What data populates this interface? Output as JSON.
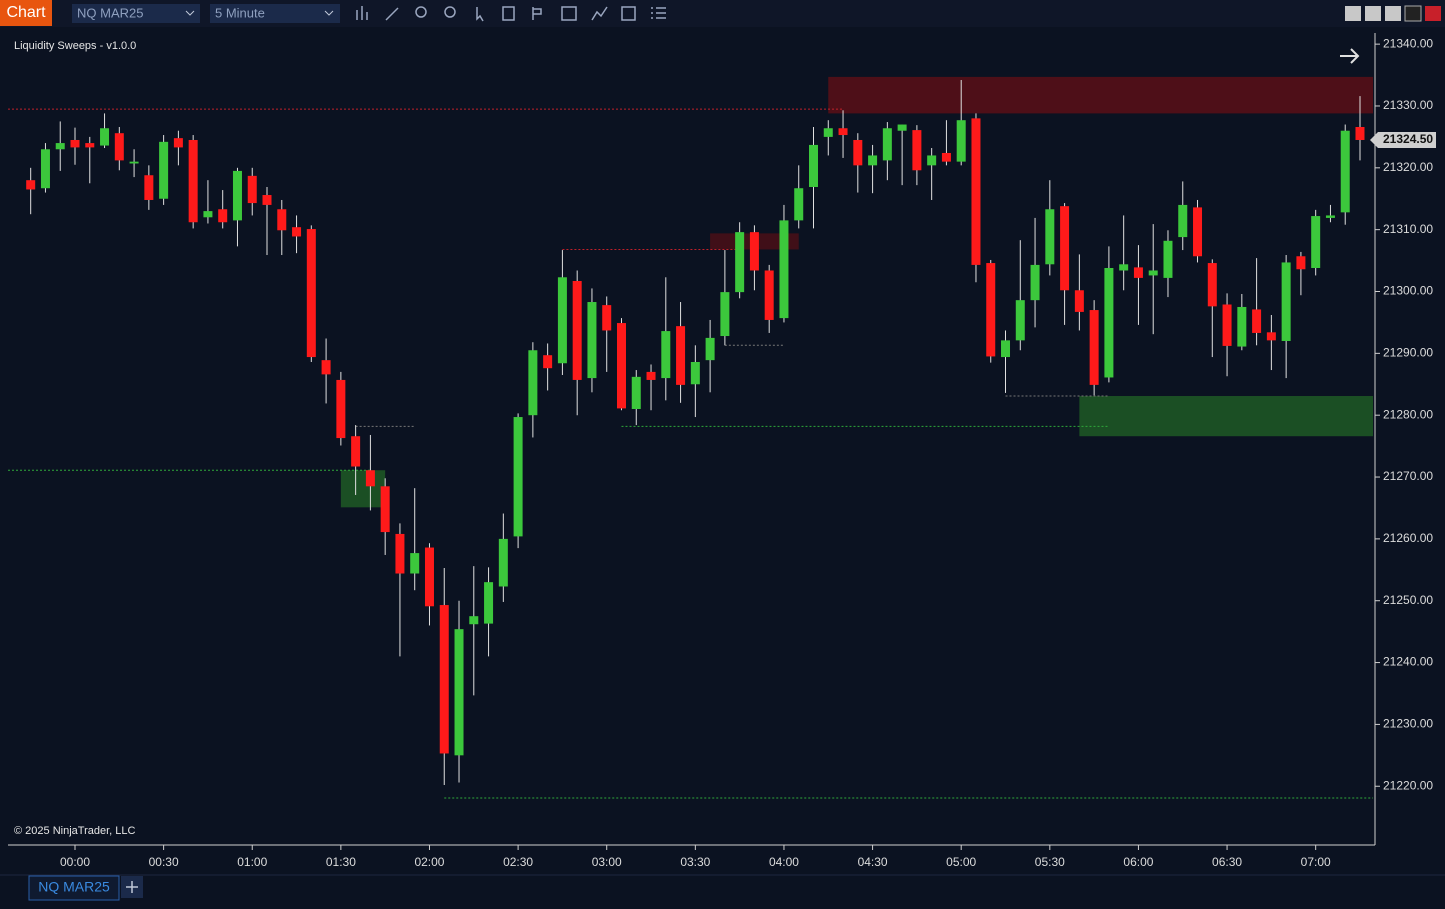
{
  "ui": {
    "app_label": "Chart",
    "instrument": "NQ MAR25",
    "interval": "5 Minute",
    "tab_label": "NQ MAR25"
  },
  "chart_data": {
    "type": "candlestick",
    "title": "Liquidity Sweeps - v1.0.0",
    "footer": "© 2025 NinjaTrader, LLC",
    "categories": [
      null,
      null,
      null,
      "00:00",
      null,
      null,
      null,
      null,
      null,
      "00:30",
      null,
      null,
      null,
      null,
      null,
      "01:00",
      null,
      null,
      null,
      null,
      null,
      "01:30",
      null,
      null,
      null,
      null,
      null,
      "02:00",
      null,
      null,
      null,
      null,
      null,
      "02:30",
      null,
      null,
      null,
      null,
      null,
      "03:00",
      null,
      null,
      null,
      null,
      null,
      "03:30",
      null,
      null,
      null,
      null,
      null,
      "04:00",
      null,
      null,
      null,
      null,
      null,
      "04:30",
      null,
      null,
      null,
      null,
      null,
      "05:00",
      null,
      null,
      null,
      null,
      null,
      "05:30",
      null,
      null,
      null,
      null,
      null,
      "06:00",
      null,
      null,
      null,
      null,
      null,
      "06:30",
      null,
      null,
      null,
      null,
      null,
      "07:00",
      null,
      null,
      null
    ],
    "open": [
      21318,
      21316.7,
      21323,
      21324.5,
      21324,
      21323.6,
      21325.6,
      21320.7,
      21318.8,
      21315,
      21324.8,
      21324.5,
      21312,
      21313.3,
      21311.5,
      21318.7,
      21315.6,
      21313.3,
      21310.4,
      21310.1,
      21288.9,
      21285.7,
      21276.6,
      21271.1,
      21268.5,
      21260.8,
      21254.4,
      21258.6,
      21249.3,
      21225,
      21246.2,
      21246.3,
      21252.3,
      21260.4,
      21280,
      21289.7,
      21288.4,
      21301.7,
      21286,
      21297.8,
      21294.9,
      21281,
      21287,
      21286,
      21294.4,
      21285,
      21288.9,
      21292.8,
      21299.9,
      21309.6,
      21303.4,
      21295.7,
      21311.5,
      21316.9,
      21325,
      21326.4,
      21324.5,
      21320.4,
      21321.2,
      21326,
      21326.1,
      21320.4,
      21322.4,
      21321,
      21328,
      21304.6,
      21289.4,
      21292.1,
      21298.6,
      21304.4,
      21313.8,
      21300.2,
      21297,
      21286.1,
      21303.4,
      21303.9,
      21302.6,
      21302.2,
      21308.8,
      21313.6,
      21304.6,
      21297.9,
      21291.1,
      21297.1,
      21293.4,
      21292,
      21305.7,
      21303.8,
      21311.9,
      21312.8,
      21326.6
    ],
    "high": [
      21320,
      21324,
      21327.5,
      21326.5,
      21325,
      21328.8,
      21326.6,
      21323,
      21320.4,
      21325.3,
      21326,
      21325.3,
      21318,
      21316.4,
      21320,
      21320,
      21316.9,
      21314.8,
      21312.3,
      21310.7,
      21292.4,
      21287,
      21278.4,
      21276.8,
      21269.8,
      21262.5,
      21268.2,
      21259.3,
      21255.3,
      21250,
      21255.6,
      21255.4,
      21264.1,
      21280.3,
      21291.8,
      21291.6,
      21306.7,
      21303.4,
      21300.5,
      21299.2,
      21295.7,
      21287.3,
      21288.2,
      21302.3,
      21298.3,
      21291.3,
      21295.4,
      21306.7,
      21311.2,
      21310.7,
      21304.3,
      21314,
      21320.4,
      21326.6,
      21327.7,
      21329.3,
      21325.6,
      21323.7,
      21327.4,
      21327,
      21326.9,
      21323.2,
      21327.7,
      21334.2,
      21328.8,
      21305.1,
      21293.7,
      21308.3,
      21311.9,
      21318,
      21314.3,
      21306,
      21298.6,
      21307.3,
      21312.3,
      21307.5,
      21310.9,
      21309.9,
      21317.8,
      21314.8,
      21305.2,
      21299.7,
      21299.6,
      21305.4,
      21296.2,
      21305.9,
      21306.4,
      21313.2,
      21314,
      21327,
      21331.6
    ],
    "low": [
      21312.5,
      21316,
      21319.5,
      21320.5,
      21317.5,
      21323.2,
      21319.6,
      21318.5,
      21313.2,
      21314,
      21320.4,
      21310.2,
      21311,
      21310.2,
      21307.3,
      21312.3,
      21305.9,
      21305.9,
      21306.2,
      21288.6,
      21281.9,
      21275.1,
      21267.1,
      21264.6,
      21257.4,
      21241,
      21251.7,
      21246,
      21220.2,
      21220.6,
      21234.7,
      21241,
      21249.8,
      21258.5,
      21276.4,
      21284,
      21286.5,
      21280,
      21283.7,
      21287,
      21280.8,
      21278.4,
      21280.8,
      21282.4,
      21282,
      21279.7,
      21283.7,
      21291.3,
      21298.9,
      21300.2,
      21293.3,
      21295,
      21310.2,
      21310.2,
      21322,
      21321.6,
      21316,
      21315.9,
      21318,
      21317.2,
      21317.2,
      21314.8,
      21320.4,
      21320.4,
      21301.5,
      21288.5,
      21283.6,
      21290.5,
      21294.2,
      21302.6,
      21294.6,
      21293.7,
      21283.2,
      21285.3,
      21300.2,
      21294.6,
      21293.1,
      21299.1,
      21306.7,
      21304.7,
      21289.4,
      21286.3,
      21290.5,
      21291.3,
      21287.3,
      21286,
      21299.4,
      21302.6,
      21311.2,
      21310.8,
      21321.2
    ],
    "close": [
      21316.5,
      21323,
      21324,
      21323.3,
      21323.3,
      21326.4,
      21321.2,
      21321,
      21314.8,
      21324.2,
      21323.3,
      21311.2,
      21313,
      21311.2,
      21319.5,
      21314.3,
      21314,
      21309.9,
      21308.9,
      21289.4,
      21286.6,
      21276.3,
      21271.7,
      21268.5,
      21261.1,
      21254.4,
      21257.7,
      21249.1,
      21225.3,
      21245.4,
      21247.5,
      21253,
      21260,
      21279.7,
      21290.5,
      21287.6,
      21302.3,
      21285.7,
      21298.3,
      21293.7,
      21281.1,
      21286.2,
      21285.7,
      21293.6,
      21284.9,
      21288.6,
      21292.5,
      21299.9,
      21309.6,
      21303.4,
      21295.4,
      21311.5,
      21316.7,
      21323.7,
      21326.4,
      21325.3,
      21320.4,
      21322,
      21326.4,
      21327,
      21319.6,
      21322,
      21321,
      21327.7,
      21304.3,
      21289.5,
      21292.1,
      21298.6,
      21304.3,
      21313.3,
      21300.2,
      21296.7,
      21284.9,
      21303.8,
      21304.4,
      21302.2,
      21303.4,
      21308.2,
      21314,
      21305.7,
      21297.6,
      21291.2,
      21297.5,
      21293.3,
      21292.1,
      21304.7,
      21303.6,
      21312.2,
      21312.3,
      21326,
      21324.5
    ],
    "up_color": "#3cc83c",
    "down_color": "#ff1a1a",
    "ylim": [
      21210.5,
      21341.8
    ],
    "yticks": [
      {
        "value": 21220,
        "label": "21220.00"
      },
      {
        "value": 21230,
        "label": "21230.00"
      },
      {
        "value": 21240,
        "label": "21240.00"
      },
      {
        "value": 21250,
        "label": "21250.00"
      },
      {
        "value": 21260,
        "label": "21260.00"
      },
      {
        "value": 21270,
        "label": "21270.00"
      },
      {
        "value": 21280,
        "label": "21280.00"
      },
      {
        "value": 21290,
        "label": "21290.00"
      },
      {
        "value": 21300,
        "label": "21300.00"
      },
      {
        "value": 21310,
        "label": "21310.00"
      },
      {
        "value": 21320,
        "label": "21320.00"
      },
      {
        "value": 21330,
        "label": "21330.00"
      },
      {
        "value": 21340,
        "label": "21340.00"
      }
    ],
    "last_price": {
      "value": 21324.5,
      "label": "21324.50"
    },
    "zones": [
      {
        "top": 21334.7,
        "bottom": 21328.8,
        "from": 54,
        "to": 90,
        "color": "#5a0f16"
      },
      {
        "top": 21309.4,
        "bottom": 21306.8,
        "from": 46,
        "to": 51,
        "color": "#4a0f16"
      },
      {
        "top": 21283.1,
        "bottom": 21276.6,
        "from": 71,
        "to": 90,
        "color": "#1f5a25"
      },
      {
        "top": 21271.1,
        "bottom": 21265.1,
        "from": 21,
        "to": 23,
        "color": "#1f5a25"
      }
    ],
    "levels": [
      {
        "price": 21329.5,
        "from": 0,
        "to": 54,
        "color": "#c0202a"
      },
      {
        "price": 21306.8,
        "from": 36,
        "to": 47,
        "color": "#c0202a"
      },
      {
        "price": 21271.1,
        "from": 0,
        "to": 22,
        "color": "#2fa83a"
      },
      {
        "price": 21278.2,
        "from": 40,
        "to": 72,
        "color": "#2fa83a"
      },
      {
        "price": 21218.1,
        "from": 28,
        "to": 90,
        "color": "#2fa83a"
      },
      {
        "price": 21278.2,
        "from": 22,
        "to": 25,
        "color": "#777777"
      },
      {
        "price": 21291.3,
        "from": 47,
        "to": 50,
        "color": "#777777"
      },
      {
        "price": 21283.1,
        "from": 66,
        "to": 72,
        "color": "#777777"
      }
    ]
  }
}
